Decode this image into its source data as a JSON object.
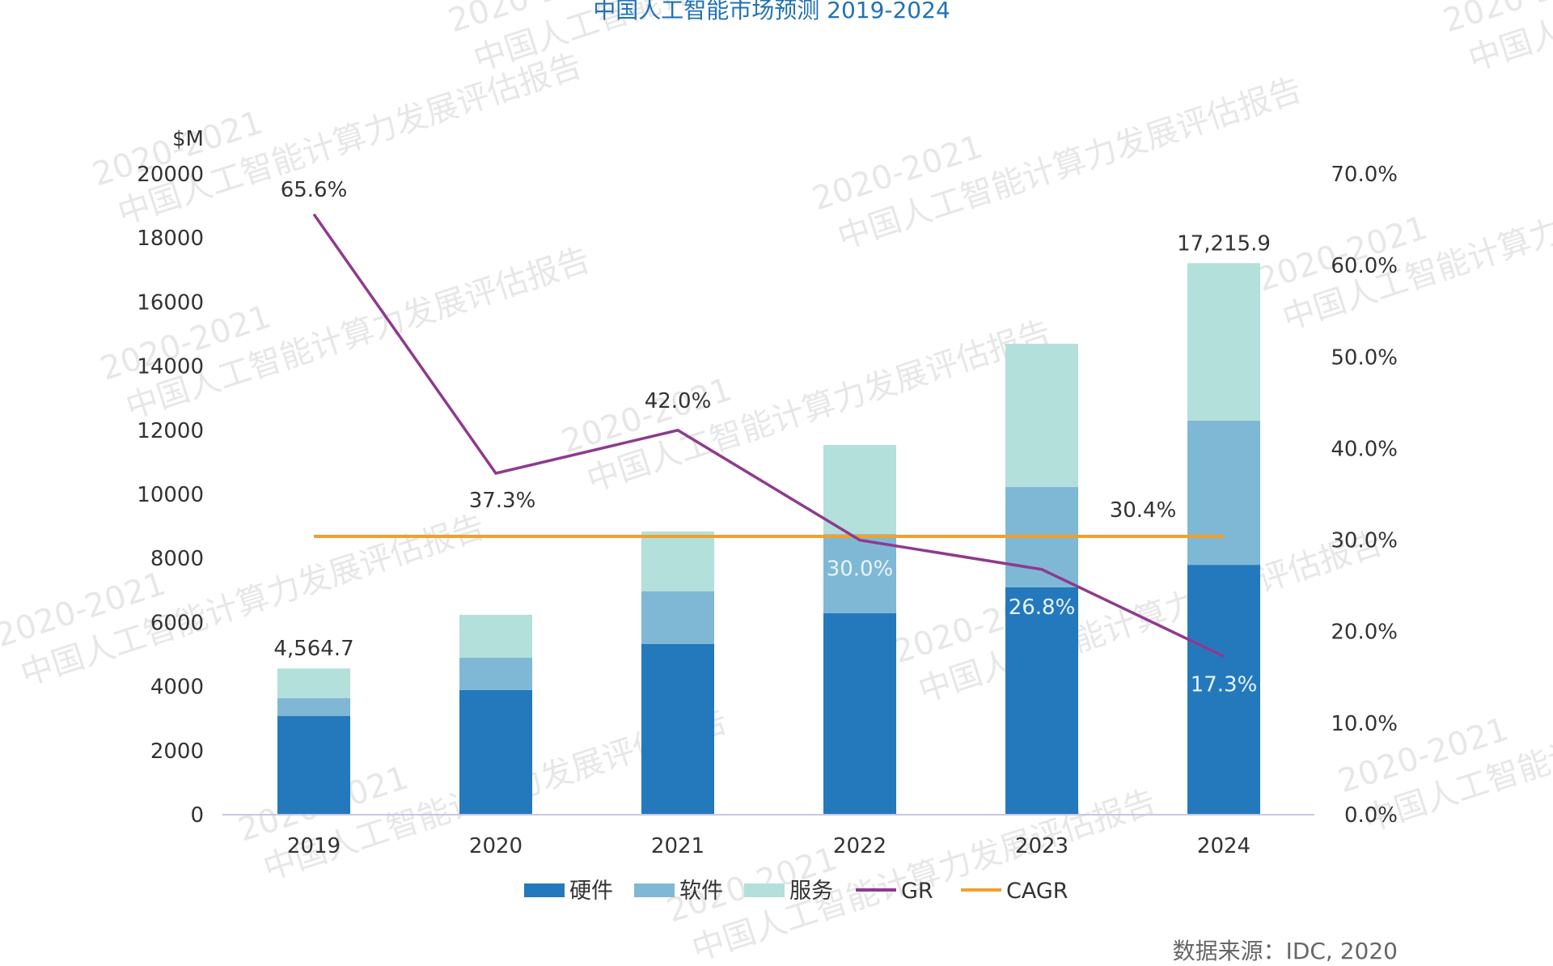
{
  "watermark": {
    "line1": "2020-2021",
    "line2": "中国人工智能计算力发展评估报告"
  },
  "chart_data": {
    "type": "bar",
    "stacked": true,
    "title": "中国人工智能市场预测 2019-2024",
    "categories": [
      "2019",
      "2020",
      "2021",
      "2022",
      "2023",
      "2024"
    ],
    "ylabel": "$M",
    "ylim": [
      0,
      20000
    ],
    "yticks": [
      "0",
      "2000",
      "4000",
      "6000",
      "8000",
      "10000",
      "12000",
      "14000",
      "16000",
      "18000",
      "20000"
    ],
    "y2lim": [
      0,
      70
    ],
    "y2ticks": [
      "0.0%",
      "10.0%",
      "20.0%",
      "30.0%",
      "40.0%",
      "50.0%",
      "60.0%",
      "70.0%"
    ],
    "series": [
      {
        "name": "硬件",
        "type": "bar",
        "color": "#2479BD",
        "values": [
          3080,
          3890,
          5330,
          6290,
          7100,
          7800
        ]
      },
      {
        "name": "软件",
        "type": "bar",
        "color": "#7FB8D5",
        "values": [
          560,
          1010,
          1640,
          2470,
          3130,
          4500
        ]
      },
      {
        "name": "服务",
        "type": "bar",
        "color": "#B3E0DA",
        "values": [
          924.7,
          1340,
          1870,
          2780,
          4470,
          4915.9
        ]
      },
      {
        "name": "GR",
        "type": "line",
        "axis": "right",
        "color": "#8E3A8E",
        "values": [
          65.6,
          37.3,
          42.0,
          30.0,
          26.8,
          17.3
        ],
        "labels": [
          "65.6%",
          "37.3%",
          "42.0%",
          "30.0%",
          "26.8%",
          "17.3%"
        ]
      },
      {
        "name": "CAGR",
        "type": "line",
        "axis": "right",
        "color": "#F0A030",
        "values": [
          30.4,
          30.4,
          30.4,
          30.4,
          30.4,
          30.4
        ],
        "label": "30.4%"
      }
    ],
    "total_labels": {
      "2019": "4,564.7",
      "2024": "17,215.9"
    },
    "legend": [
      "硬件",
      "软件",
      "服务",
      "GR",
      "CAGR"
    ],
    "legend_position": "bottom",
    "grid": false
  },
  "source": "数据来源：IDC, 2020"
}
